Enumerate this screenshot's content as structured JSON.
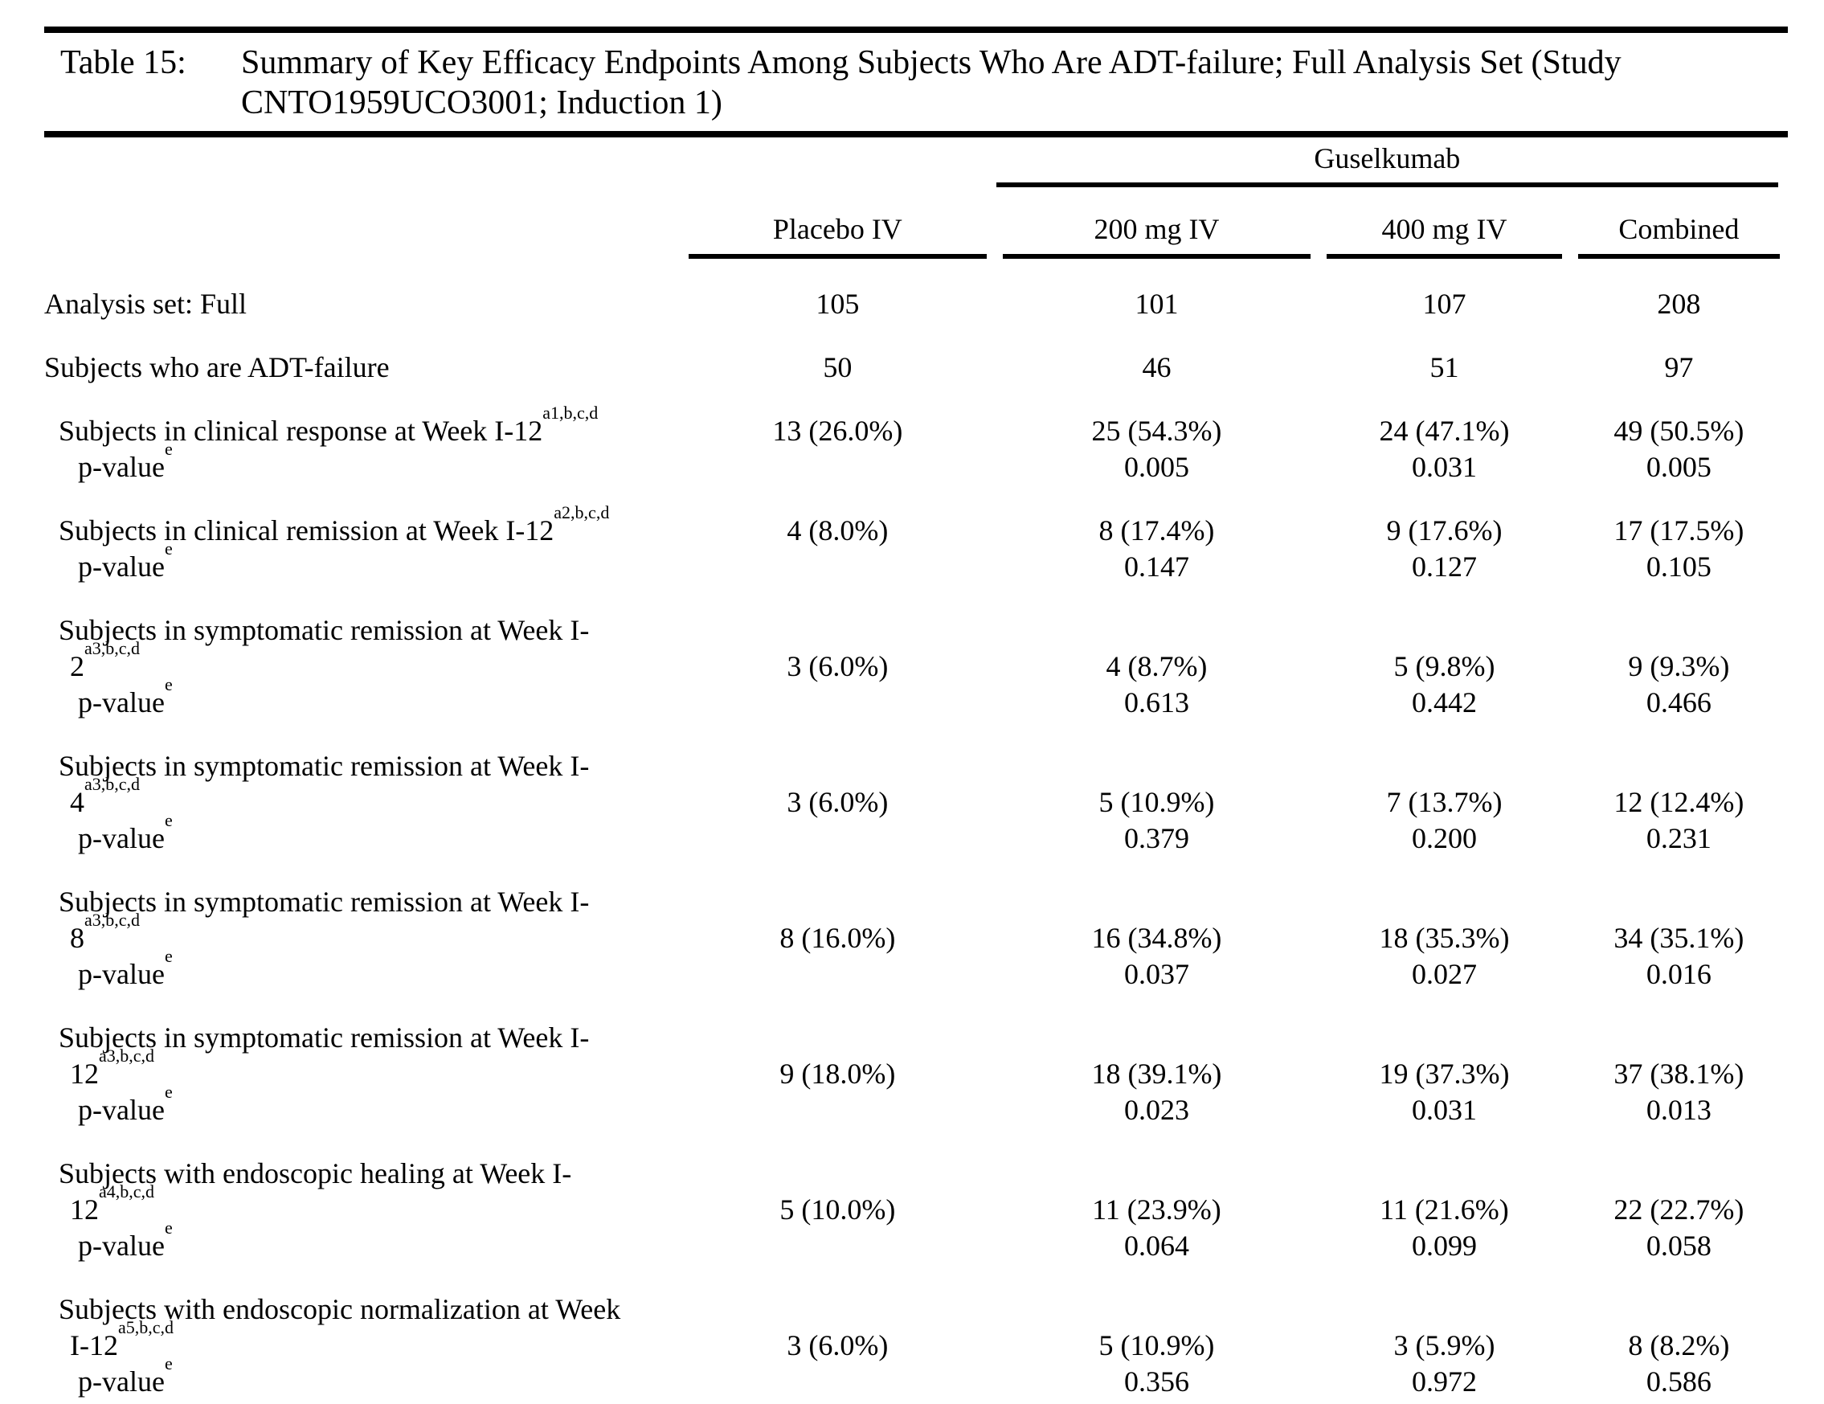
{
  "page": {
    "background": "#ffffff",
    "text_color": "#000000"
  },
  "title": {
    "label": "Table 15:",
    "lines": [
      "Summary of Key Efficacy Endpoints Among Subjects Who Are ADT-failure; Full Analysis Set (Study",
      "CNTO1959UCO3001; Induction 1)"
    ]
  },
  "header": {
    "group": "Guselkumab",
    "columns": [
      "Placebo IV",
      "200 mg IV",
      "400 mg IV",
      "Combined"
    ]
  },
  "rows": [
    {
      "type": "section",
      "label": "Analysis set: Full",
      "values": [
        "105",
        "101",
        "107",
        "208"
      ]
    },
    {
      "type": "section",
      "label": "Subjects who are ADT-failure",
      "values": [
        "50",
        "46",
        "51",
        "97"
      ]
    },
    {
      "type": "endpoint",
      "label_lines": [
        {
          "text": "Subjects in clinical response at Week I-12",
          "sup": "a1,b,c,d"
        }
      ],
      "values": [
        "13 (26.0%)",
        "25 (54.3%)",
        "24 (47.1%)",
        "49 (50.5%)"
      ],
      "pvalue": {
        "text": "p-value",
        "sup": "e"
      },
      "pvalues": [
        "",
        "0.005",
        "0.031",
        "0.005"
      ]
    },
    {
      "type": "endpoint",
      "label_lines": [
        {
          "text": "Subjects in clinical remission at Week I-12",
          "sup": "a2,b,c,d"
        }
      ],
      "values": [
        "4 (8.0%)",
        "8 (17.4%)",
        "9 (17.6%)",
        "17 (17.5%)"
      ],
      "pvalue": {
        "text": "p-value",
        "sup": "e"
      },
      "pvalues": [
        "",
        "0.147",
        "0.127",
        "0.105"
      ]
    },
    {
      "type": "endpoint",
      "label_lines": [
        {
          "text": "Subjects in symptomatic remission at Week I-"
        },
        {
          "text": "2",
          "sup": "a3,b,c,d"
        }
      ],
      "values": [
        "3 (6.0%)",
        "4 (8.7%)",
        "5 (9.8%)",
        "9 (9.3%)"
      ],
      "pvalue": {
        "text": "p-value",
        "sup": "e"
      },
      "pvalues": [
        "",
        "0.613",
        "0.442",
        "0.466"
      ]
    },
    {
      "type": "endpoint",
      "label_lines": [
        {
          "text": "Subjects in symptomatic remission at Week I-"
        },
        {
          "text": "4",
          "sup": "a3,b,c,d"
        }
      ],
      "values": [
        "3 (6.0%)",
        "5 (10.9%)",
        "7 (13.7%)",
        "12 (12.4%)"
      ],
      "pvalue": {
        "text": "p-value",
        "sup": "e"
      },
      "pvalues": [
        "",
        "0.379",
        "0.200",
        "0.231"
      ]
    },
    {
      "type": "endpoint",
      "label_lines": [
        {
          "text": "Subjects in symptomatic remission at Week I-"
        },
        {
          "text": "8",
          "sup": "a3,b,c,d"
        }
      ],
      "values": [
        "8 (16.0%)",
        "16 (34.8%)",
        "18 (35.3%)",
        "34 (35.1%)"
      ],
      "pvalue": {
        "text": "p-value",
        "sup": "e"
      },
      "pvalues": [
        "",
        "0.037",
        "0.027",
        "0.016"
      ]
    },
    {
      "type": "endpoint",
      "label_lines": [
        {
          "text": "Subjects in symptomatic remission at Week I-"
        },
        {
          "text": "12",
          "sup": "a3,b,c,d"
        }
      ],
      "values": [
        "9 (18.0%)",
        "18 (39.1%)",
        "19 (37.3%)",
        "37 (38.1%)"
      ],
      "pvalue": {
        "text": "p-value",
        "sup": "e"
      },
      "pvalues": [
        "",
        "0.023",
        "0.031",
        "0.013"
      ]
    },
    {
      "type": "endpoint",
      "label_lines": [
        {
          "text": "Subjects with endoscopic healing at Week I-"
        },
        {
          "text": "12",
          "sup": "a4,b,c,d"
        }
      ],
      "values": [
        "5 (10.0%)",
        "11 (23.9%)",
        "11 (21.6%)",
        "22 (22.7%)"
      ],
      "pvalue": {
        "text": "p-value",
        "sup": "e"
      },
      "pvalues": [
        "",
        "0.064",
        "0.099",
        "0.058"
      ]
    },
    {
      "type": "endpoint",
      "label_lines": [
        {
          "text": "Subjects with endoscopic normalization at Week"
        },
        {
          "text": "I-12",
          "sup": "a5,b,c,d"
        }
      ],
      "values": [
        "3 (6.0%)",
        "5 (10.9%)",
        "3 (5.9%)",
        "8 (8.2%)"
      ],
      "pvalue": {
        "text": "p-value",
        "sup": "e"
      },
      "pvalues": [
        "",
        "0.356",
        "0.972",
        "0.586"
      ]
    }
  ]
}
